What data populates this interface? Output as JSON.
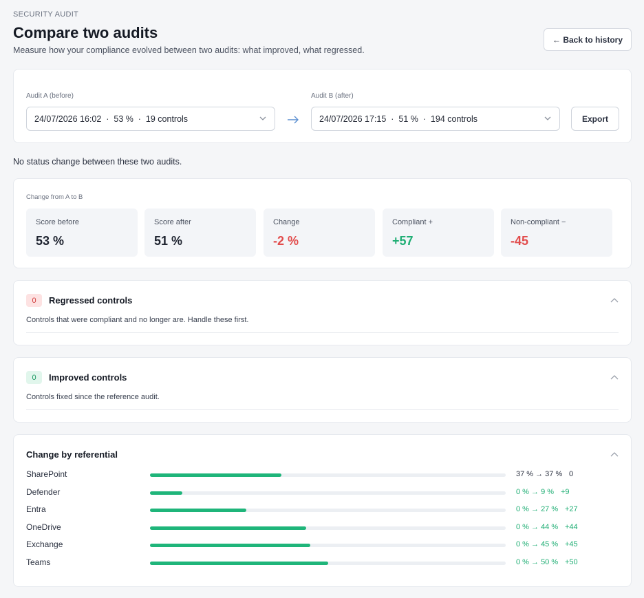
{
  "header": {
    "eyebrow": "SECURITY AUDIT",
    "title": "Compare two audits",
    "subtitle": "Measure how your compliance evolved between two audits: what improved, what regressed.",
    "back_label": "← Back to history"
  },
  "selectors": {
    "audit_a_label": "Audit A (before)",
    "audit_a_value": "24/07/2026 16:02  ·  53 %  ·  19 controls",
    "audit_b_label": "Audit B (after)",
    "audit_b_value": "24/07/2026 17:15  ·  51 %  ·  194 controls",
    "export_label": "Export"
  },
  "status_message": "No status change between these two audits.",
  "stats": {
    "section_label": "Change from A to B",
    "items": [
      {
        "label": "Score before",
        "value": "53 %"
      },
      {
        "label": "Score after",
        "value": "51 %"
      },
      {
        "label": "Change",
        "value": "-2 %"
      },
      {
        "label": "Compliant +",
        "value": "+57"
      },
      {
        "label": "Non-compliant −",
        "value": "-45"
      }
    ]
  },
  "regressed": {
    "count": "0",
    "title": "Regressed controls",
    "description": "Controls that were compliant and no longer are. Handle these first."
  },
  "improved": {
    "count": "0",
    "title": "Improved controls",
    "description": "Controls fixed since the reference audit."
  },
  "referentials": {
    "title": "Change by referential",
    "rows": [
      {
        "name": "SharePoint",
        "fill": 0.37,
        "range": "37 % → 37 %",
        "delta": "0"
      },
      {
        "name": "Defender",
        "fill": 0.09,
        "range": "0 % → 9 %",
        "delta": "+9"
      },
      {
        "name": "Entra",
        "fill": 0.27,
        "range": "0 % → 27 %",
        "delta": "+27"
      },
      {
        "name": "OneDrive",
        "fill": 0.44,
        "range": "0 % → 44 %",
        "delta": "+44"
      },
      {
        "name": "Exchange",
        "fill": 0.45,
        "range": "0 % → 45 %",
        "delta": "+45"
      },
      {
        "name": "Teams",
        "fill": 0.5,
        "range": "0 % → 50 %",
        "delta": "+50"
      }
    ]
  },
  "colors": {
    "positive": "#1fae74",
    "negative": "#e24c4c",
    "bar_fill": "#1fb57a",
    "arrow": "#5b8fd1"
  },
  "icons": {
    "select_chevron": "chevron-down-icon",
    "compare_arrow": "arrow-right-icon",
    "collapse": "chevron-up-icon"
  }
}
